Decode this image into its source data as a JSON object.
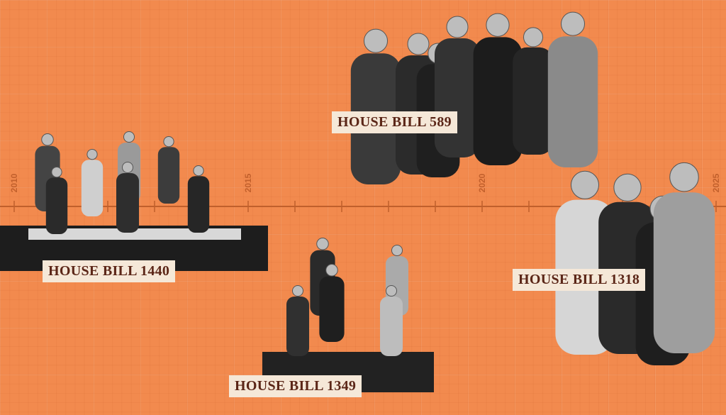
{
  "timeline": {
    "years": [
      2010,
      2015,
      2020,
      2025
    ]
  },
  "bills": [
    {
      "label": "HOUSE BILL 589"
    },
    {
      "label": "HOUSE BILL 1440"
    },
    {
      "label": "HOUSE BILL 1349"
    },
    {
      "label": "HOUSE BILL 1318"
    }
  ]
}
